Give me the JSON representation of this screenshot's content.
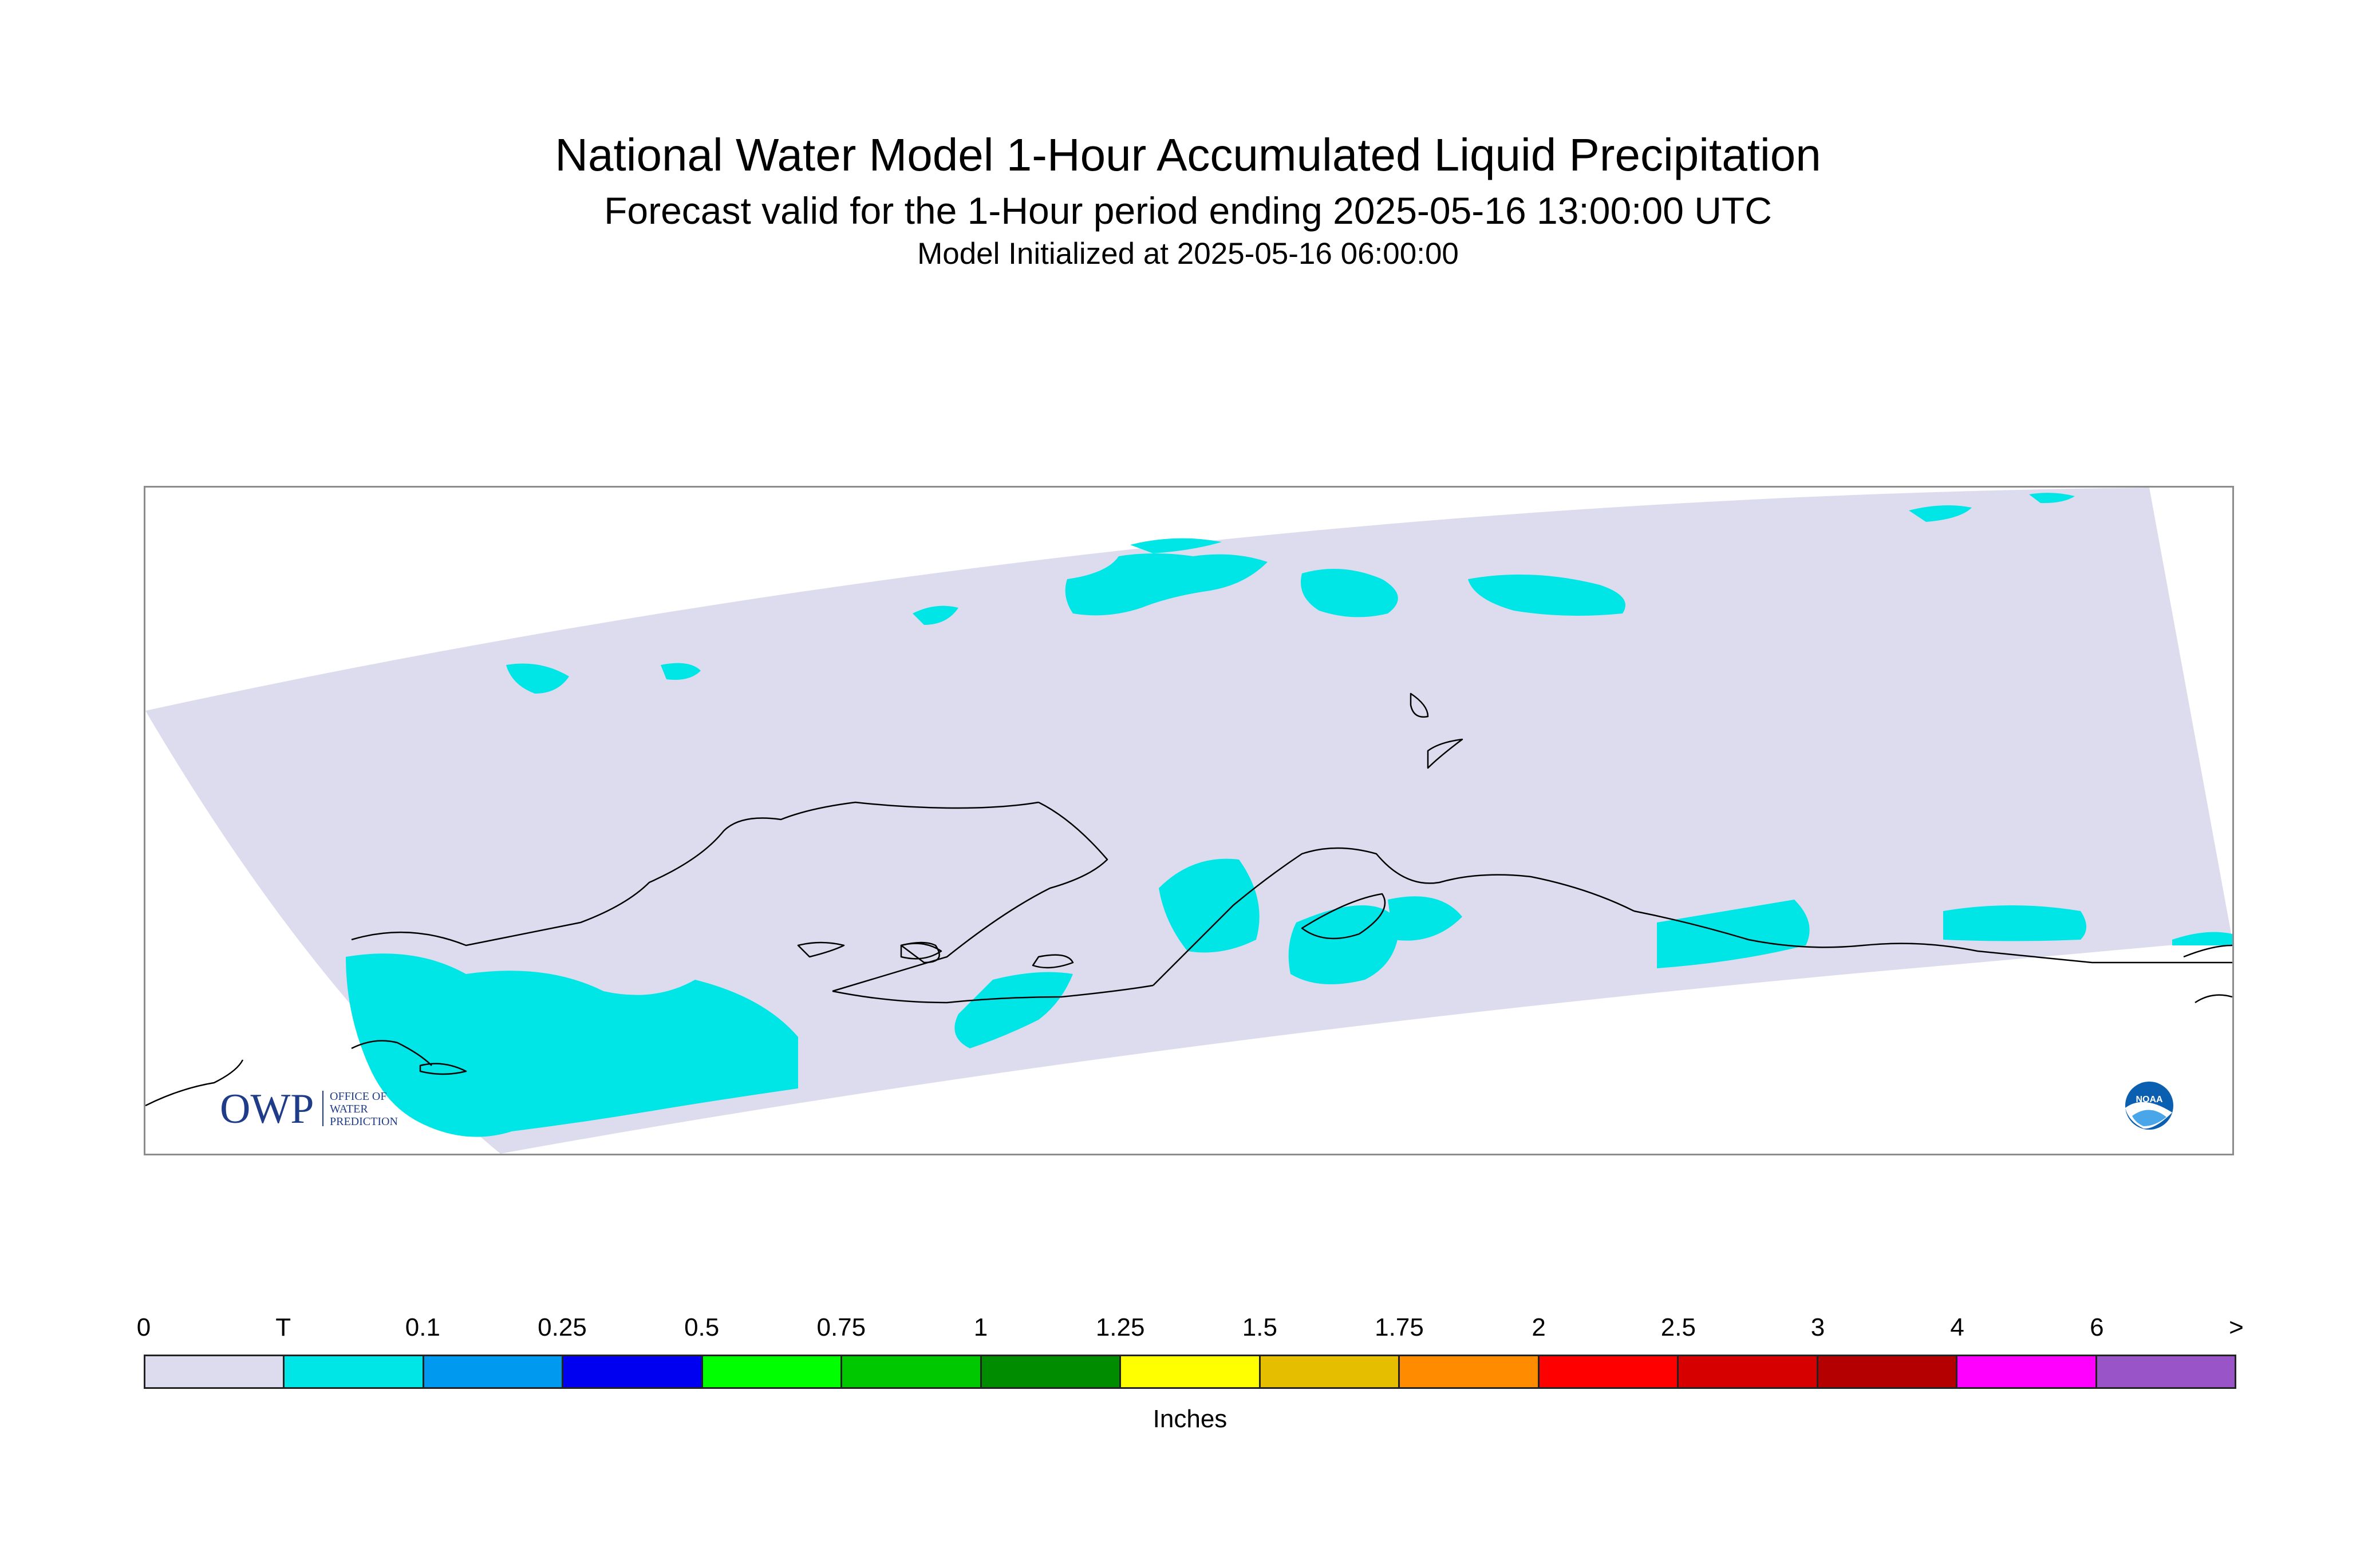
{
  "title": {
    "main": "National Water Model 1-Hour Accumulated Liquid Precipitation",
    "subtitle": "Forecast valid for the 1-Hour period ending 2025-05-16 13:00:00 UTC",
    "init": "Model Initialized at 2025-05-16 06:00:00"
  },
  "map": {
    "domain_fill_color": "#dcdcee",
    "precip_color": "#00e6e6",
    "coastline_color": "#000000",
    "dominant_precip_category": "T",
    "logos": {
      "owp": {
        "icon": "owp-logo-icon",
        "letters": "OWP",
        "lines": [
          "OFFICE OF",
          "WATER",
          "PREDICTION"
        ],
        "color": "#1f3c88"
      },
      "noaa": {
        "icon": "noaa-logo-icon",
        "letters": "NOAA",
        "color": "#0b5fb0"
      }
    }
  },
  "legend": {
    "unit": "Inches",
    "tick_labels": [
      "0",
      "T",
      "0.1",
      "0.25",
      "0.5",
      "0.75",
      "1",
      "1.25",
      "1.5",
      "1.75",
      "2",
      "2.5",
      "3",
      "4",
      "6",
      ">"
    ],
    "colors": [
      "#dcdcee",
      "#00e6e6",
      "#0099f0",
      "#0000f0",
      "#00ff00",
      "#00c800",
      "#008c00",
      "#ffff00",
      "#e6be00",
      "#ff8c00",
      "#ff0000",
      "#d70000",
      "#b40000",
      "#ff00ff",
      "#9955c8"
    ]
  }
}
